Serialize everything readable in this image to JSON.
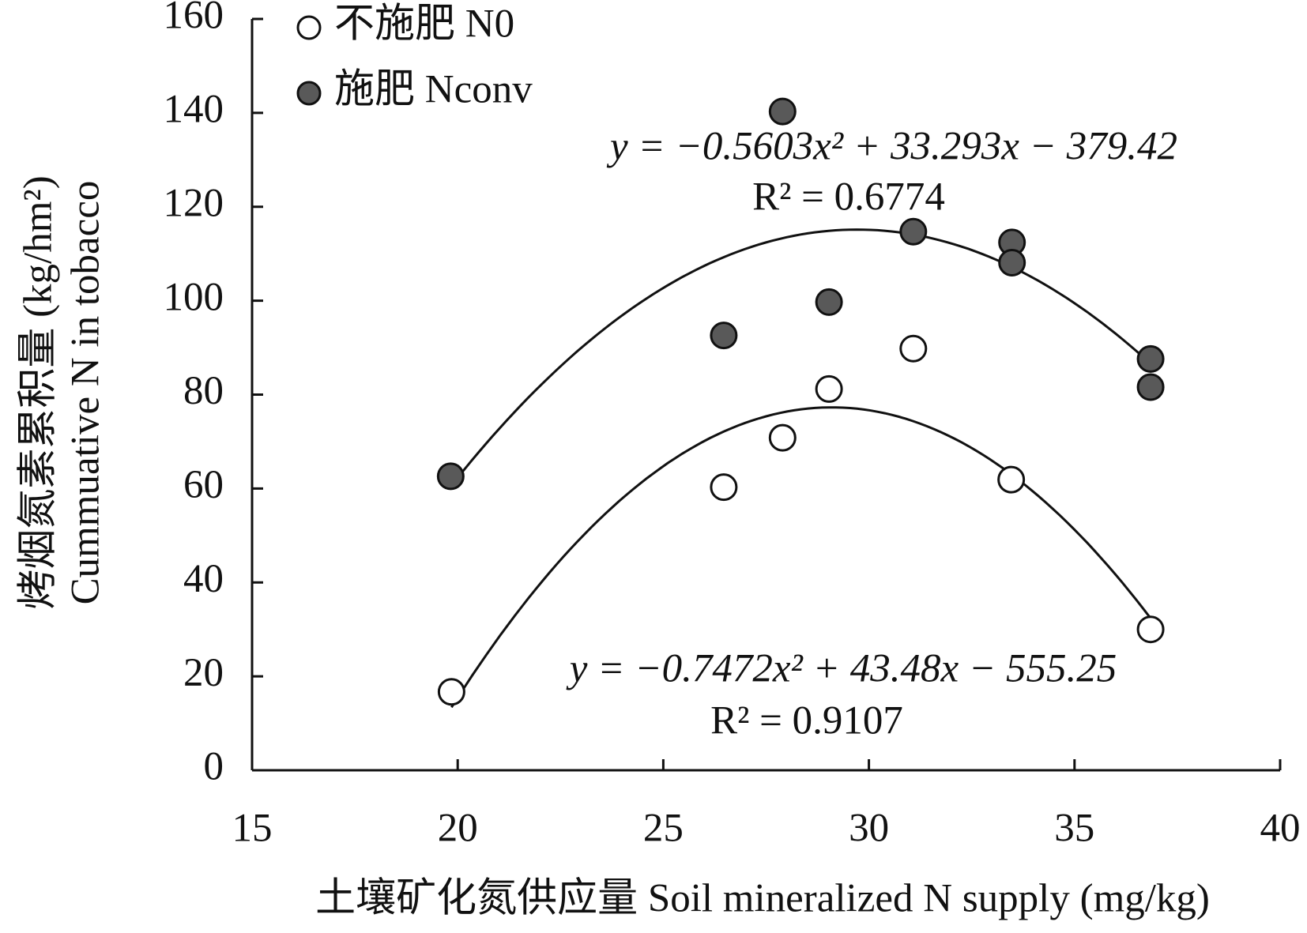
{
  "chart_data": {
    "type": "scatter",
    "xlabel": "土壤矿化氮供应量 Soil mineralized N supply (mg/kg)",
    "ylabel": [
      "烤烟氮素累积量 (kg/hm²)",
      "Cummuative N in tobacco"
    ],
    "xlim": [
      15,
      40
    ],
    "xticks": [
      15,
      20,
      25,
      30,
      35,
      40
    ],
    "ylim": [
      0,
      160
    ],
    "yticks": [
      0,
      20,
      40,
      60,
      80,
      100,
      120,
      140,
      160
    ],
    "series": [
      {
        "name": "不施肥 N0",
        "color": "#ffffff",
        "x": [
          19.85,
          26.47,
          27.9,
          29.03,
          31.08,
          33.46,
          36.85
        ],
        "values": [
          16.7,
          60.3,
          70.8,
          81.2,
          89.8,
          61.9,
          30.0
        ],
        "fit": {
          "coefficients": [
            -0.7472,
            43.48,
            -555.25
          ],
          "equation": "y = −0.7472x² + 43.48x − 555.25",
          "r2": "R² = 0.9107"
        }
      },
      {
        "name": "施肥 Nconv",
        "color": "#595959",
        "x": [
          19.83,
          26.47,
          27.9,
          29.03,
          31.08,
          33.48,
          33.48,
          36.85,
          36.85
        ],
        "values": [
          62.6,
          92.6,
          140.3,
          99.7,
          114.7,
          112.4,
          108.1,
          87.6,
          81.6
        ],
        "fit": {
          "coefficients": [
            -0.5603,
            33.293,
            -379.42
          ],
          "equation": "y = −0.5603x² + 33.293x − 379.42",
          "r2": "R² = 0.6774"
        }
      }
    ]
  }
}
